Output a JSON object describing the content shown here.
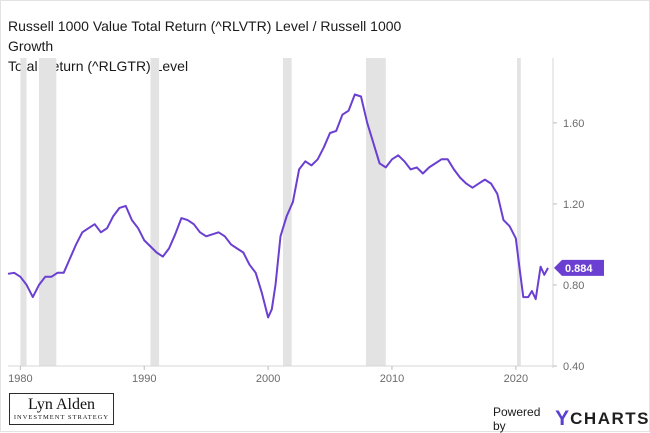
{
  "chart_data": {
    "type": "line",
    "title": "Russell 1000 Value Total Return (^RLVTR) Level / Russell 1000 Growth Total Return (^RLGTR) Level",
    "title_lines": [
      "Russell 1000 Value Total Return (^RLVTR) Level / Russell 1000 Growth",
      "Total Return (^RLGTR) Level"
    ],
    "xlabel": "",
    "ylabel": "",
    "xlim": [
      1979.0,
      2023.0
    ],
    "ylim": [
      0.4,
      1.92
    ],
    "x_ticks": [
      1980,
      1990,
      2000,
      2010,
      2020
    ],
    "x_tick_labels": [
      "1980",
      "1990",
      "2000",
      "2010",
      "2020"
    ],
    "y_ticks": [
      0.4,
      0.8,
      1.2,
      1.6
    ],
    "y_tick_labels": [
      "0.40",
      "0.80",
      "1.20",
      "1.60"
    ],
    "y_axis_side": "right",
    "grid": false,
    "recessions": [
      [
        1980.0,
        1980.5
      ],
      [
        1981.5,
        1982.9
      ],
      [
        1990.5,
        1991.2
      ],
      [
        2001.2,
        2001.9
      ],
      [
        2007.9,
        2009.5
      ],
      [
        2020.1,
        2020.4
      ]
    ],
    "series": [
      {
        "name": "",
        "color": "#6a3fd1",
        "x": [
          1979.0,
          1979.5,
          1980.0,
          1980.5,
          1981.0,
          1981.5,
          1982.0,
          1982.5,
          1983.0,
          1983.5,
          1984.0,
          1984.5,
          1985.0,
          1985.5,
          1986.0,
          1986.5,
          1987.0,
          1987.5,
          1988.0,
          1988.5,
          1989.0,
          1989.5,
          1990.0,
          1990.5,
          1991.0,
          1991.5,
          1992.0,
          1992.5,
          1993.0,
          1993.5,
          1994.0,
          1994.5,
          1995.0,
          1995.5,
          1996.0,
          1996.5,
          1997.0,
          1997.5,
          1998.0,
          1998.5,
          1999.0,
          1999.5,
          2000.0,
          2000.3,
          2000.6,
          2001.0,
          2001.5,
          2002.0,
          2002.5,
          2003.0,
          2003.5,
          2004.0,
          2004.5,
          2005.0,
          2005.5,
          2006.0,
          2006.5,
          2007.0,
          2007.5,
          2008.0,
          2008.5,
          2009.0,
          2009.5,
          2010.0,
          2010.5,
          2011.0,
          2011.5,
          2012.0,
          2012.5,
          2013.0,
          2013.5,
          2014.0,
          2014.5,
          2015.0,
          2015.5,
          2016.0,
          2016.5,
          2017.0,
          2017.5,
          2018.0,
          2018.5,
          2019.0,
          2019.5,
          2020.0,
          2020.3,
          2020.6,
          2021.0,
          2021.3,
          2021.6,
          2022.0,
          2022.3,
          2022.6
        ],
        "y": [
          0.855,
          0.86,
          0.84,
          0.8,
          0.74,
          0.8,
          0.84,
          0.84,
          0.86,
          0.86,
          0.93,
          1.0,
          1.06,
          1.08,
          1.1,
          1.06,
          1.08,
          1.14,
          1.18,
          1.19,
          1.12,
          1.08,
          1.02,
          0.99,
          0.96,
          0.94,
          0.98,
          1.05,
          1.13,
          1.12,
          1.1,
          1.06,
          1.04,
          1.05,
          1.06,
          1.04,
          1.0,
          0.98,
          0.96,
          0.9,
          0.86,
          0.76,
          0.64,
          0.68,
          0.8,
          1.04,
          1.14,
          1.21,
          1.37,
          1.41,
          1.39,
          1.42,
          1.48,
          1.55,
          1.56,
          1.64,
          1.66,
          1.74,
          1.73,
          1.6,
          1.5,
          1.4,
          1.38,
          1.42,
          1.44,
          1.41,
          1.37,
          1.38,
          1.35,
          1.38,
          1.4,
          1.42,
          1.42,
          1.37,
          1.33,
          1.3,
          1.28,
          1.3,
          1.32,
          1.3,
          1.25,
          1.12,
          1.09,
          1.03,
          0.88,
          0.74,
          0.74,
          0.77,
          0.73,
          0.89,
          0.85,
          0.884
        ]
      }
    ],
    "last_value_label": "0.884",
    "last_value": 0.884
  },
  "branding": {
    "logo_name": "Lyn Alden",
    "logo_tagline": "INVESTMENT STRATEGY",
    "powered_by": "Powered by",
    "ycharts_y": "Y",
    "ycharts_rest": "CHARTS"
  }
}
